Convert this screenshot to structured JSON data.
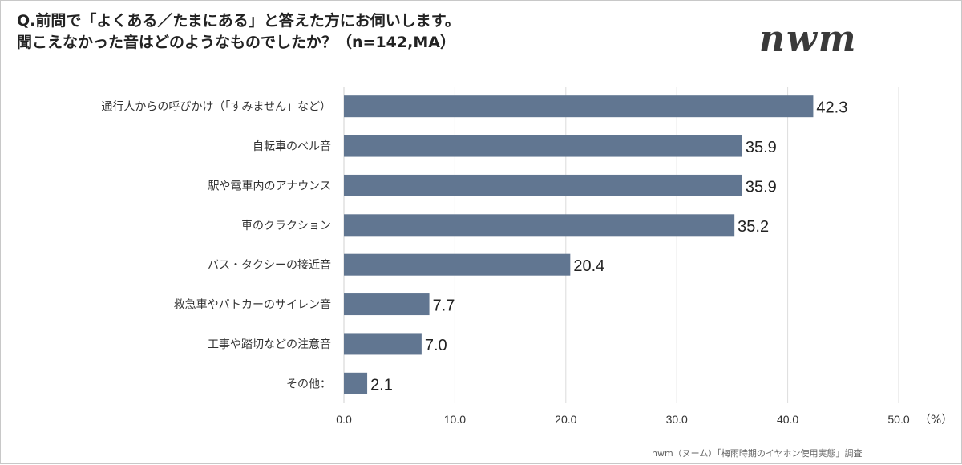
{
  "title_line1": "Q.前問で「よくある／たまにある」と答えた方にお伺いします。",
  "title_line2": "聞こえなかった音はどのようなものでしたか？（n=142,MA）",
  "logo_text": "nwm",
  "footer": "nwm（ヌーム）「梅雨時期のイヤホン使用実態」調査",
  "chart_data": {
    "type": "bar",
    "orientation": "horizontal",
    "categories": [
      "通行人からの呼びかけ（「すみません」など）",
      "自転車のベル音",
      "駅や電車内のアナウンス",
      "車のクラクション",
      "バス・タクシーの接近音",
      "救急車やパトカーのサイレン音",
      "工事や踏切などの注意音",
      "その他："
    ],
    "values": [
      42.3,
      35.9,
      35.9,
      35.2,
      20.4,
      7.7,
      7.0,
      2.1
    ],
    "value_labels": [
      "42.3",
      "35.9",
      "35.9",
      "35.2",
      "20.4",
      "7.7",
      "7.0",
      "2.1"
    ],
    "xlim": [
      0,
      50
    ],
    "xticks": [
      0,
      10,
      20,
      30,
      40,
      50
    ],
    "xtick_labels": [
      "0.0",
      "10.0",
      "20.0",
      "30.0",
      "40.0",
      "50.0"
    ],
    "xlabel": "（%）",
    "grid": true,
    "bar_color": "#617691"
  }
}
